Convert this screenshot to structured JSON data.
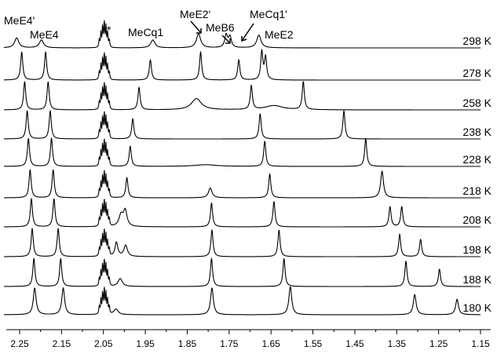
{
  "chart_data": {
    "type": "line",
    "title": "",
    "xlabel": "",
    "ylabel": "",
    "x_axis": {
      "xlim": [
        2.28,
        1.15
      ],
      "reversed": true,
      "ticks": [
        2.25,
        2.15,
        2.05,
        1.95,
        1.85,
        1.75,
        1.65,
        1.55,
        1.45,
        1.35,
        1.25,
        1.15
      ],
      "tick_labels": [
        "2.25",
        "2.15",
        "2.05",
        "1.95",
        "1.85",
        "1.75",
        "1.65",
        "1.55",
        "1.45",
        "1.35",
        "1.25",
        "1.15"
      ]
    },
    "solvent_marker": "*",
    "peak_labels": [
      "MeE4'",
      "MeE4",
      "MeCq1",
      "MeE2'",
      "MeB6",
      "MeCq1'",
      "MeE2"
    ],
    "series": [
      {
        "name": "298 K",
        "peaks": [
          {
            "x": 2.257,
            "h": 0.35,
            "w": 0.006
          },
          {
            "x": 2.198,
            "h": 0.28,
            "w": 0.006
          },
          {
            "x": 1.932,
            "h": 0.28,
            "w": 0.006
          },
          {
            "x": 1.823,
            "h": 0.5,
            "w": 0.006
          },
          {
            "x": 1.757,
            "h": 0.45,
            "w": 0.004
          },
          {
            "x": 1.748,
            "h": 0.38,
            "w": 0.004
          },
          {
            "x": 1.679,
            "h": 0.45,
            "w": 0.006
          }
        ]
      },
      {
        "name": "278 K",
        "peaks": [
          {
            "x": 2.245,
            "h": 1.0,
            "w": 0.003
          },
          {
            "x": 2.188,
            "h": 1.0,
            "w": 0.003
          },
          {
            "x": 1.938,
            "h": 0.72,
            "w": 0.003
          },
          {
            "x": 1.818,
            "h": 1.0,
            "w": 0.003
          },
          {
            "x": 1.727,
            "h": 0.72,
            "w": 0.003
          },
          {
            "x": 1.672,
            "h": 1.0,
            "w": 0.003
          },
          {
            "x": 1.663,
            "h": 0.8,
            "w": 0.003
          }
        ]
      },
      {
        "name": "258 K",
        "peaks": [
          {
            "x": 2.238,
            "h": 1.0,
            "w": 0.003
          },
          {
            "x": 2.182,
            "h": 1.0,
            "w": 0.003
          },
          {
            "x": 1.965,
            "h": 0.8,
            "w": 0.003
          },
          {
            "x": 1.828,
            "h": 0.4,
            "w": 0.014
          },
          {
            "x": 1.697,
            "h": 0.85,
            "w": 0.003
          },
          {
            "x": 1.643,
            "h": 0.15,
            "w": 0.025
          },
          {
            "x": 1.573,
            "h": 1.0,
            "w": 0.003
          }
        ]
      },
      {
        "name": "238 K",
        "peaks": [
          {
            "x": 2.232,
            "h": 1.0,
            "w": 0.003
          },
          {
            "x": 2.177,
            "h": 1.0,
            "w": 0.003
          },
          {
            "x": 1.98,
            "h": 0.72,
            "w": 0.003
          },
          {
            "x": 1.676,
            "h": 0.9,
            "w": 0.003
          },
          {
            "x": 1.476,
            "h": 1.0,
            "w": 0.003
          }
        ]
      },
      {
        "name": "228 K",
        "peaks": [
          {
            "x": 2.229,
            "h": 1.0,
            "w": 0.003
          },
          {
            "x": 2.174,
            "h": 1.0,
            "w": 0.003
          },
          {
            "x": 1.986,
            "h": 0.72,
            "w": 0.003
          },
          {
            "x": 1.806,
            "h": 0.06,
            "w": 0.03
          },
          {
            "x": 1.665,
            "h": 0.9,
            "w": 0.003
          },
          {
            "x": 1.424,
            "h": 1.0,
            "w": 0.003
          }
        ]
      },
      {
        "name": "218 K",
        "peaks": [
          {
            "x": 2.225,
            "h": 1.0,
            "w": 0.003
          },
          {
            "x": 2.17,
            "h": 1.0,
            "w": 0.003
          },
          {
            "x": 1.994,
            "h": 0.72,
            "w": 0.003
          },
          {
            "x": 1.795,
            "h": 0.35,
            "w": 0.005
          },
          {
            "x": 1.653,
            "h": 0.85,
            "w": 0.003
          },
          {
            "x": 1.385,
            "h": 0.95,
            "w": 0.004
          }
        ]
      },
      {
        "name": "208 K",
        "peaks": [
          {
            "x": 2.222,
            "h": 1.0,
            "w": 0.003
          },
          {
            "x": 2.168,
            "h": 1.0,
            "w": 0.003
          },
          {
            "x": 2.008,
            "h": 0.4,
            "w": 0.006
          },
          {
            "x": 1.998,
            "h": 0.55,
            "w": 0.005
          },
          {
            "x": 1.792,
            "h": 0.85,
            "w": 0.003
          },
          {
            "x": 1.643,
            "h": 0.9,
            "w": 0.003
          },
          {
            "x": 1.366,
            "h": 0.72,
            "w": 0.003
          },
          {
            "x": 1.338,
            "h": 0.72,
            "w": 0.003
          }
        ]
      },
      {
        "name": "198 K",
        "peaks": [
          {
            "x": 2.22,
            "h": 1.0,
            "w": 0.003
          },
          {
            "x": 2.158,
            "h": 1.0,
            "w": 0.003
          },
          {
            "x": 2.019,
            "h": 0.5,
            "w": 0.004
          },
          {
            "x": 1.997,
            "h": 0.4,
            "w": 0.005
          },
          {
            "x": 1.791,
            "h": 0.95,
            "w": 0.003
          },
          {
            "x": 1.631,
            "h": 0.95,
            "w": 0.003
          },
          {
            "x": 1.343,
            "h": 0.8,
            "w": 0.003
          },
          {
            "x": 1.293,
            "h": 0.62,
            "w": 0.003
          }
        ]
      },
      {
        "name": "188 K",
        "peaks": [
          {
            "x": 2.216,
            "h": 1.0,
            "w": 0.003
          },
          {
            "x": 2.152,
            "h": 1.0,
            "w": 0.003
          },
          {
            "x": 2.01,
            "h": 0.28,
            "w": 0.006
          },
          {
            "x": 1.792,
            "h": 1.0,
            "w": 0.003
          },
          {
            "x": 1.619,
            "h": 1.0,
            "w": 0.003
          },
          {
            "x": 1.328,
            "h": 0.9,
            "w": 0.003
          },
          {
            "x": 1.248,
            "h": 0.62,
            "w": 0.003
          }
        ]
      },
      {
        "name": "180 K",
        "peaks": [
          {
            "x": 2.214,
            "h": 0.95,
            "w": 0.004
          },
          {
            "x": 2.146,
            "h": 0.95,
            "w": 0.004
          },
          {
            "x": 2.02,
            "h": 0.2,
            "w": 0.006
          },
          {
            "x": 1.791,
            "h": 0.95,
            "w": 0.004
          },
          {
            "x": 1.604,
            "h": 1.0,
            "w": 0.004
          },
          {
            "x": 1.307,
            "h": 0.72,
            "w": 0.004
          },
          {
            "x": 1.206,
            "h": 0.55,
            "w": 0.004
          }
        ]
      }
    ]
  }
}
